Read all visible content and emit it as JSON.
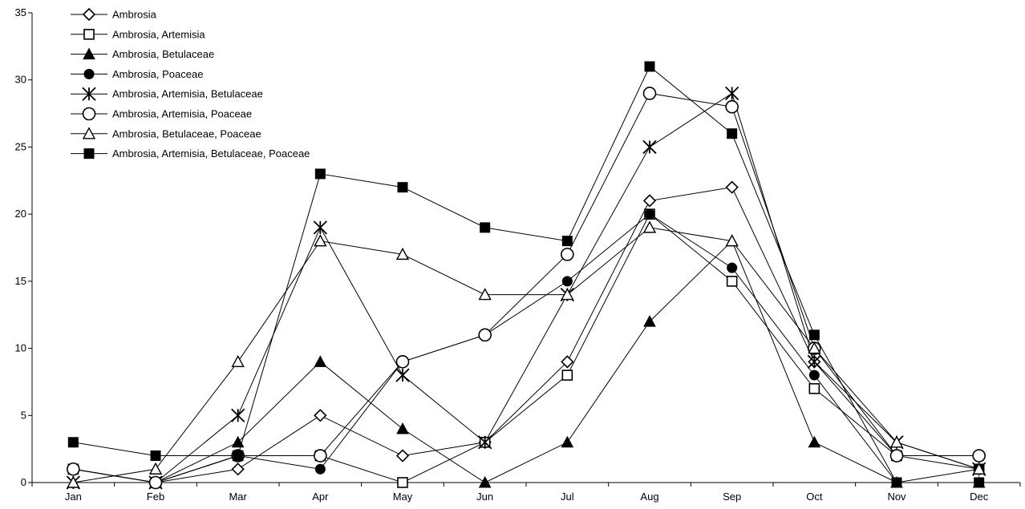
{
  "chart_data": {
    "type": "line",
    "title": "",
    "xlabel": "",
    "ylabel": "",
    "categories": [
      "Jan",
      "Feb",
      "Mar",
      "Apr",
      "May",
      "Jun",
      "Jul",
      "Aug",
      "Sep",
      "Oct",
      "Nov",
      "Dec"
    ],
    "ylim": [
      0,
      35
    ],
    "yticks": [
      0,
      5,
      10,
      15,
      20,
      25,
      30,
      35
    ],
    "grid": false,
    "legend_position": "top-left",
    "series": [
      {
        "name": "Ambrosia",
        "marker": "diamond-open",
        "values": [
          1,
          0,
          1,
          5,
          2,
          3,
          9,
          21,
          22,
          9,
          2,
          2
        ]
      },
      {
        "name": "Ambrosia, Artemisia",
        "marker": "square-open",
        "values": [
          1,
          0,
          2,
          2,
          0,
          3,
          8,
          20,
          15,
          7,
          2,
          1
        ]
      },
      {
        "name": "Ambrosia, Betulaceae",
        "marker": "triangle-filled",
        "values": [
          0,
          0,
          3,
          9,
          4,
          0,
          3,
          12,
          18,
          3,
          0,
          0
        ]
      },
      {
        "name": "Ambrosia, Poaceae",
        "marker": "circle-filled",
        "values": [
          1,
          0,
          2,
          1,
          9,
          11,
          15,
          20,
          16,
          8,
          0,
          1
        ]
      },
      {
        "name": "Ambrosia, Artemisia, Betulaceae",
        "marker": "star",
        "values": [
          0,
          0,
          5,
          19,
          8,
          3,
          14,
          25,
          29,
          9,
          3,
          1
        ]
      },
      {
        "name": "Ambrosia, Artemisia, Poaceae",
        "marker": "circle-open",
        "values": [
          1,
          0,
          2,
          2,
          9,
          11,
          17,
          29,
          28,
          10,
          2,
          2
        ]
      },
      {
        "name": "Ambrosia, Betulaceae, Poaceae",
        "marker": "triangle-open",
        "values": [
          0,
          1,
          9,
          18,
          17,
          14,
          14,
          19,
          18,
          10,
          3,
          1
        ]
      },
      {
        "name": "Ambrosia, Artemisia, Betulaceae, Poaceae",
        "marker": "square-filled",
        "values": [
          3,
          2,
          2,
          23,
          22,
          19,
          18,
          31,
          26,
          11,
          0,
          0
        ]
      }
    ]
  }
}
